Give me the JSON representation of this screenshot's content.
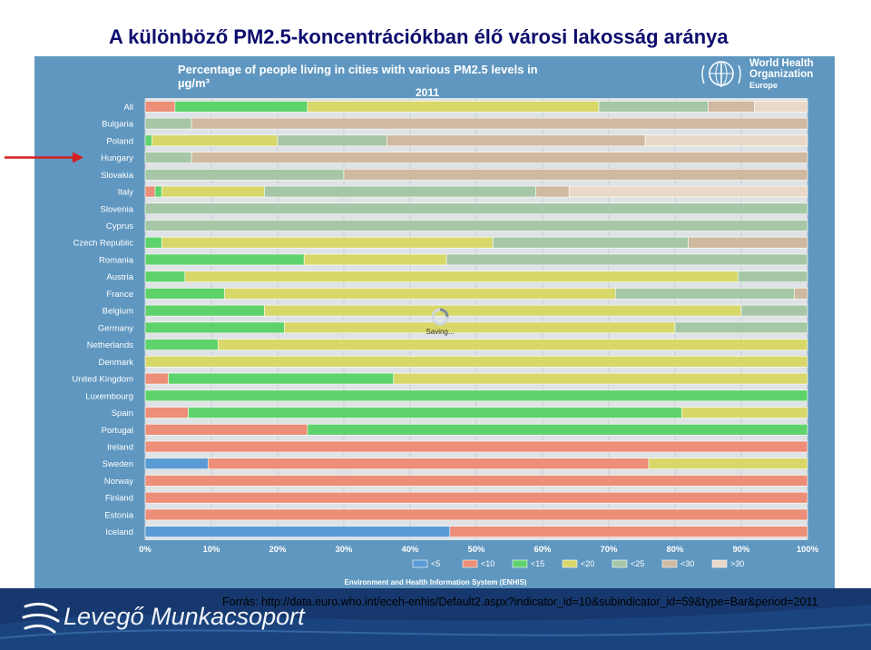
{
  "slide": {
    "title": "A különböző PM2.5-koncentrációkban élő városi lakosság aránya",
    "source": "Forrás: http://data.euro.who.int/eceh-enhis/Default2.aspx?indicator_id=10&subindicator_id=59&type=Bar&period=2011",
    "brand": "Levegő Munkacsoport"
  },
  "who": {
    "line1": "World Health",
    "line2": "Organization",
    "region": "Europe"
  },
  "overlay": {
    "saving": "Saving..."
  },
  "colors": {
    "panel": "#5f97c0",
    "plot_bg": "#dfe3e6",
    "footer": "#16386e",
    "title": "#0d0d6e",
    "arrow": "#d42020"
  },
  "chart_data": {
    "type": "bar",
    "orientation": "horizontal",
    "stacked": true,
    "title": "Percentage of people living in cities with various PM2.5 levels in µg/m³",
    "subtitle": "2011",
    "footer": "Environment and Health Information System (ENHIS)",
    "xlim": [
      0,
      100
    ],
    "x_ticks": [
      "0%",
      "10%",
      "20%",
      "30%",
      "40%",
      "50%",
      "60%",
      "70%",
      "80%",
      "90%",
      "100%"
    ],
    "legend_position": "bottom",
    "highlighted_category": "Hungary",
    "categories": [
      "All",
      "Bulgaria",
      "Poland",
      "Hungary",
      "Slovakia",
      "Italy",
      "Slovenia",
      "Cyprus",
      "Czech Republic",
      "Romania",
      "Austria",
      "France",
      "Belgium",
      "Germany",
      "Netherlands",
      "Denmark",
      "United Kingdom",
      "Luxembourg",
      "Spain",
      "Portugal",
      "Ireland",
      "Sweden",
      "Norway",
      "Finland",
      "Estonia",
      "Iceland"
    ],
    "series": [
      {
        "name": "<5",
        "color": "#5b9bd5",
        "values": [
          0,
          0,
          0,
          0,
          0,
          0,
          0,
          0,
          0,
          0,
          0,
          0,
          0,
          0,
          0,
          0,
          0,
          0,
          0,
          0,
          0,
          9.5,
          0,
          0,
          0,
          46
        ]
      },
      {
        "name": "<10",
        "color": "#ec8e78",
        "values": [
          4.5,
          0,
          0,
          0,
          0,
          1.5,
          0,
          0,
          0,
          0,
          0,
          0,
          0,
          0,
          0,
          0,
          3.5,
          0,
          6.5,
          24.5,
          100,
          66.5,
          100,
          100,
          100,
          54
        ]
      },
      {
        "name": "<15",
        "color": "#5fd36b",
        "values": [
          20,
          0,
          1,
          0,
          0,
          1,
          0,
          0,
          2.5,
          24,
          6,
          12,
          18,
          21,
          11,
          0,
          34,
          100,
          74.5,
          75.5,
          0,
          0,
          0,
          0,
          0,
          0
        ]
      },
      {
        "name": "<20",
        "color": "#d8d86a",
        "values": [
          44,
          0,
          19,
          0,
          0,
          15.5,
          0,
          0,
          50,
          21.5,
          83.5,
          59,
          72,
          59,
          89,
          100,
          62.5,
          0,
          19,
          0,
          0,
          24,
          0,
          0,
          0,
          0
        ]
      },
      {
        "name": "<25",
        "color": "#a6c7a6",
        "values": [
          16.5,
          7,
          16.5,
          7,
          30,
          41,
          100,
          100,
          29.5,
          54.5,
          10.5,
          27,
          10,
          20,
          0,
          0,
          0,
          0,
          0,
          0,
          0,
          0,
          0,
          0,
          0,
          0
        ]
      },
      {
        "name": "<30",
        "color": "#cfb9a0",
        "values": [
          7,
          93,
          39,
          93,
          70,
          5,
          0,
          0,
          18,
          0,
          0,
          2,
          0,
          0,
          0,
          0,
          0,
          0,
          0,
          0,
          0,
          0,
          0,
          0,
          0,
          0
        ]
      },
      {
        "name": ">30",
        "color": "#ead9c8",
        "values": [
          8,
          0,
          24.5,
          0,
          0,
          36,
          0,
          0,
          0,
          0,
          0,
          0,
          0,
          0,
          0,
          0,
          0,
          0,
          0,
          0,
          0,
          0,
          0,
          0,
          0,
          0
        ]
      }
    ]
  }
}
